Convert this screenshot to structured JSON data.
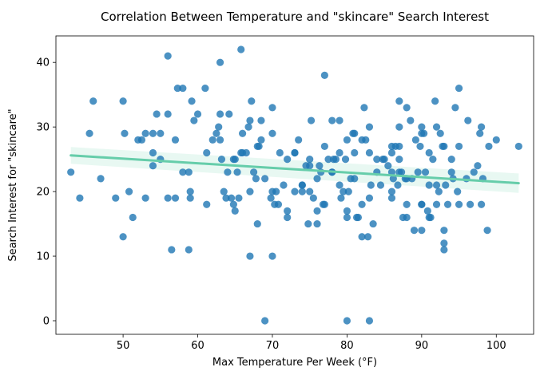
{
  "chart_data": {
    "type": "scatter",
    "title": "Correlation Between Temperature and \"skincare\" Search Interest",
    "xlabel": "Max Temperature Per Week (°F)",
    "ylabel": "Search Interest for \"skincare\"",
    "xlim": [
      41.0,
      105.0
    ],
    "ylim": [
      -2.1,
      44.1
    ],
    "x_ticks": [
      50,
      60,
      70,
      80,
      90,
      100
    ],
    "y_ticks": [
      0,
      10,
      20,
      30,
      40
    ],
    "grid": false,
    "point_color": "#1f77b4",
    "trend_color": "#66cdaa",
    "regression": {
      "x": [
        43,
        103
      ],
      "y": [
        25.6,
        21.3
      ],
      "ci_lower": [
        24.3,
        19.8
      ],
      "ci_upper": [
        26.9,
        22.8
      ]
    },
    "points": [
      [
        43,
        23
      ],
      [
        44.2,
        19
      ],
      [
        45.5,
        29
      ],
      [
        46,
        34
      ],
      [
        47,
        22
      ],
      [
        49,
        19
      ],
      [
        50,
        34
      ],
      [
        50.2,
        29
      ],
      [
        50,
        13
      ],
      [
        50.8,
        20
      ],
      [
        51.3,
        16
      ],
      [
        52,
        28
      ],
      [
        52.5,
        28
      ],
      [
        53,
        29
      ],
      [
        53,
        19
      ],
      [
        54,
        24
      ],
      [
        54,
        26
      ],
      [
        54,
        29
      ],
      [
        54.5,
        32
      ],
      [
        55,
        29
      ],
      [
        55,
        25
      ],
      [
        56,
        32
      ],
      [
        56,
        41
      ],
      [
        56,
        19
      ],
      [
        56.5,
        11
      ],
      [
        57,
        28
      ],
      [
        57,
        19
      ],
      [
        57.3,
        36
      ],
      [
        58,
        23
      ],
      [
        58,
        36
      ],
      [
        58.8,
        23
      ],
      [
        58.8,
        11
      ],
      [
        59,
        19
      ],
      [
        59,
        20
      ],
      [
        59.2,
        34
      ],
      [
        59.5,
        31
      ],
      [
        60,
        32
      ],
      [
        61,
        36
      ],
      [
        61.2,
        26
      ],
      [
        61.2,
        18
      ],
      [
        62,
        28
      ],
      [
        62.5,
        29
      ],
      [
        62.8,
        30
      ],
      [
        63,
        40
      ],
      [
        63,
        32
      ],
      [
        63,
        28
      ],
      [
        63.2,
        25
      ],
      [
        63.5,
        20
      ],
      [
        63.8,
        19
      ],
      [
        64,
        23
      ],
      [
        64.2,
        32
      ],
      [
        64.5,
        19
      ],
      [
        64.8,
        25
      ],
      [
        64.8,
        18
      ],
      [
        65,
        17
      ],
      [
        65,
        25
      ],
      [
        65.3,
        23
      ],
      [
        65.5,
        19
      ],
      [
        65.8,
        26
      ],
      [
        66,
        29
      ],
      [
        66,
        26
      ],
      [
        65.8,
        42
      ],
      [
        66.5,
        26
      ],
      [
        66.8,
        30
      ],
      [
        67,
        20
      ],
      [
        67,
        31
      ],
      [
        67,
        10
      ],
      [
        67.2,
        34
      ],
      [
        67.5,
        23
      ],
      [
        67.8,
        22
      ],
      [
        68,
        15
      ],
      [
        68,
        27
      ],
      [
        68.2,
        27
      ],
      [
        68.5,
        28
      ],
      [
        68.5,
        31
      ],
      [
        69,
        0
      ],
      [
        69,
        22
      ],
      [
        70,
        29
      ],
      [
        70,
        33
      ],
      [
        70,
        10
      ],
      [
        69.8,
        19
      ],
      [
        70,
        20
      ],
      [
        70.3,
        18
      ],
      [
        70.5,
        20
      ],
      [
        70.8,
        18
      ],
      [
        71,
        26
      ],
      [
        71.5,
        21
      ],
      [
        72,
        25
      ],
      [
        72,
        17
      ],
      [
        72,
        16
      ],
      [
        73,
        26
      ],
      [
        73,
        26
      ],
      [
        73,
        20
      ],
      [
        73.5,
        28
      ],
      [
        74,
        21
      ],
      [
        74,
        21
      ],
      [
        74,
        20
      ],
      [
        74.5,
        24
      ],
      [
        74.8,
        15
      ],
      [
        75,
        25
      ],
      [
        75,
        20
      ],
      [
        75,
        24
      ],
      [
        75.2,
        31
      ],
      [
        75.5,
        19
      ],
      [
        76,
        15
      ],
      [
        76,
        17
      ],
      [
        76,
        22
      ],
      [
        76.3,
        24
      ],
      [
        76.5,
        23
      ],
      [
        76.8,
        18
      ],
      [
        77,
        27
      ],
      [
        77,
        38
      ],
      [
        77,
        18
      ],
      [
        77.5,
        25
      ],
      [
        78,
        23
      ],
      [
        78,
        23
      ],
      [
        78,
        31
      ],
      [
        78.2,
        25
      ],
      [
        78.5,
        25
      ],
      [
        79,
        21
      ],
      [
        79,
        26
      ],
      [
        79,
        31
      ],
      [
        79.2,
        19
      ],
      [
        79.5,
        20
      ],
      [
        79.8,
        25
      ],
      [
        80,
        17
      ],
      [
        80,
        16
      ],
      [
        80,
        0
      ],
      [
        80,
        28
      ],
      [
        80.2,
        20
      ],
      [
        80.5,
        22
      ],
      [
        80.8,
        29
      ],
      [
        81,
        22
      ],
      [
        81,
        29
      ],
      [
        81,
        26
      ],
      [
        81.3,
        16
      ],
      [
        81.5,
        16
      ],
      [
        82,
        28
      ],
      [
        82,
        18
      ],
      [
        82,
        13
      ],
      [
        82.3,
        33
      ],
      [
        82.5,
        28
      ],
      [
        82.8,
        13
      ],
      [
        83,
        26
      ],
      [
        83,
        30
      ],
      [
        83,
        0
      ],
      [
        83,
        19
      ],
      [
        83.2,
        21
      ],
      [
        83.5,
        15
      ],
      [
        84,
        23
      ],
      [
        84,
        25
      ],
      [
        84.5,
        21
      ],
      [
        84.8,
        25
      ],
      [
        85,
        25
      ],
      [
        85.5,
        24
      ],
      [
        86,
        23
      ],
      [
        86,
        27
      ],
      [
        86,
        26
      ],
      [
        86,
        20
      ],
      [
        86,
        19
      ],
      [
        86.2,
        22
      ],
      [
        86.5,
        27
      ],
      [
        86.8,
        21
      ],
      [
        87,
        27
      ],
      [
        87,
        23
      ],
      [
        87,
        30
      ],
      [
        87,
        34
      ],
      [
        87,
        25
      ],
      [
        87.3,
        23
      ],
      [
        87.5,
        16
      ],
      [
        87.8,
        22
      ],
      [
        88,
        16
      ],
      [
        88,
        18
      ],
      [
        88,
        22
      ],
      [
        88,
        33
      ],
      [
        88.5,
        31
      ],
      [
        88.7,
        22
      ],
      [
        89,
        14
      ],
      [
        89.2,
        28
      ],
      [
        89.5,
        23
      ],
      [
        89.8,
        27
      ],
      [
        90,
        29
      ],
      [
        90,
        18
      ],
      [
        90,
        30
      ],
      [
        90,
        18
      ],
      [
        90,
        14
      ],
      [
        90.3,
        29
      ],
      [
        90.5,
        23
      ],
      [
        90.8,
        17
      ],
      [
        91,
        21
      ],
      [
        91,
        26
      ],
      [
        91,
        16
      ],
      [
        91.2,
        16
      ],
      [
        91.5,
        25
      ],
      [
        91.8,
        34
      ],
      [
        92,
        18
      ],
      [
        92,
        21
      ],
      [
        92,
        30
      ],
      [
        92.3,
        20
      ],
      [
        92.5,
        29
      ],
      [
        92.8,
        27
      ],
      [
        93,
        27
      ],
      [
        93,
        12
      ],
      [
        93,
        11
      ],
      [
        93,
        14
      ],
      [
        93.2,
        21
      ],
      [
        93.5,
        18
      ],
      [
        94,
        25
      ],
      [
        94,
        23
      ],
      [
        94.2,
        22
      ],
      [
        94.5,
        33
      ],
      [
        94.8,
        20
      ],
      [
        95,
        27
      ],
      [
        95,
        36
      ],
      [
        95,
        18
      ],
      [
        96,
        22
      ],
      [
        96.2,
        31
      ],
      [
        96.5,
        18
      ],
      [
        97,
        23
      ],
      [
        97.5,
        24
      ],
      [
        97.8,
        29
      ],
      [
        98,
        30
      ],
      [
        98,
        18
      ],
      [
        98.2,
        22
      ],
      [
        98.8,
        14
      ],
      [
        99,
        27
      ],
      [
        100,
        28
      ],
      [
        103,
        27
      ]
    ]
  }
}
